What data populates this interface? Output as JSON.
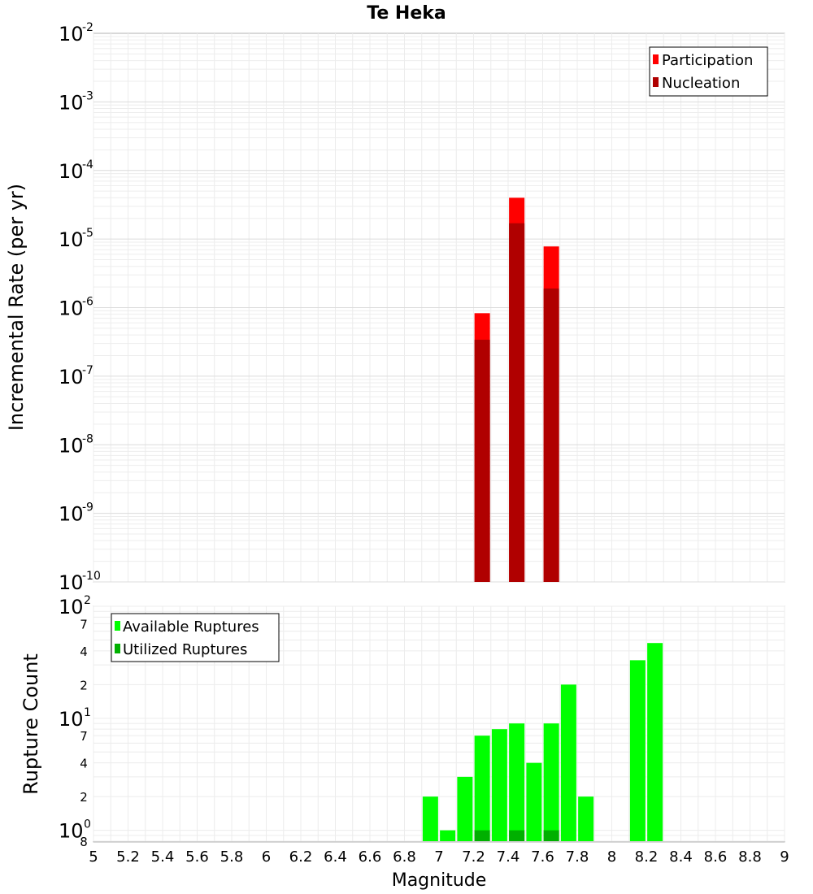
{
  "chart_data": [
    {
      "type": "bar",
      "title": "Te Heka",
      "ylabel": "Incremental Rate (per yr)",
      "yscale": "log",
      "ylim_exponents": [
        -10,
        -2
      ],
      "y_tick_exponents": [
        -10,
        -9,
        -8,
        -7,
        -6,
        -5,
        -4,
        -3,
        -2
      ],
      "grid": true,
      "legend_position": "top-right",
      "bin_width": 0.2,
      "series": [
        {
          "name": "Participation",
          "color": "#ff0000",
          "x": [
            7.25,
            7.45,
            7.65
          ],
          "values": [
            8.3e-07,
            4e-05,
            7.8e-06
          ]
        },
        {
          "name": "Nucleation",
          "color": "#b00000",
          "x": [
            7.25,
            7.45,
            7.65
          ],
          "values": [
            3.4e-07,
            1.7e-05,
            1.9e-06
          ]
        }
      ]
    },
    {
      "type": "bar",
      "xlabel": "Magnitude",
      "ylabel": "Rupture Count",
      "yscale": "log",
      "xlim": [
        5,
        9
      ],
      "x_ticks": [
        "5",
        "5.2",
        "5.4",
        "5.6",
        "5.8",
        "6",
        "6.2",
        "6.4",
        "6.6",
        "6.8",
        "7",
        "7.2",
        "7.4",
        "7.6",
        "7.8",
        "8",
        "8.2",
        "8.4",
        "8.6",
        "8.8",
        "9"
      ],
      "ylim": [
        0.8,
        100
      ],
      "y_major_ticks": [
        {
          "base": "10",
          "exp": "0",
          "value": 1
        },
        {
          "base": "10",
          "exp": "1",
          "value": 10
        },
        {
          "base": "10",
          "exp": "2",
          "value": 100
        }
      ],
      "y_minor_ticks": [
        {
          "label": "8",
          "value": 0.8
        },
        {
          "label": "2",
          "value": 2
        },
        {
          "label": "4",
          "value": 4
        },
        {
          "label": "7",
          "value": 7
        },
        {
          "label": "2",
          "value": 20
        },
        {
          "label": "4",
          "value": 40
        },
        {
          "label": "7",
          "value": 70
        }
      ],
      "grid": true,
      "legend_position": "top-left",
      "bin_width": 0.1,
      "series": [
        {
          "name": "Available Ruptures",
          "color": "#00ff00",
          "x": [
            6.95,
            7.05,
            7.15,
            7.25,
            7.35,
            7.45,
            7.55,
            7.65,
            7.75,
            7.85,
            8.15,
            8.25
          ],
          "values": [
            2,
            1,
            3,
            7,
            8,
            9,
            4,
            9,
            20,
            2,
            33,
            47
          ]
        },
        {
          "name": "Utilized Ruptures",
          "color": "#00b000",
          "x": [
            7.25,
            7.45,
            7.65
          ],
          "values": [
            1,
            1,
            1
          ]
        }
      ]
    }
  ]
}
